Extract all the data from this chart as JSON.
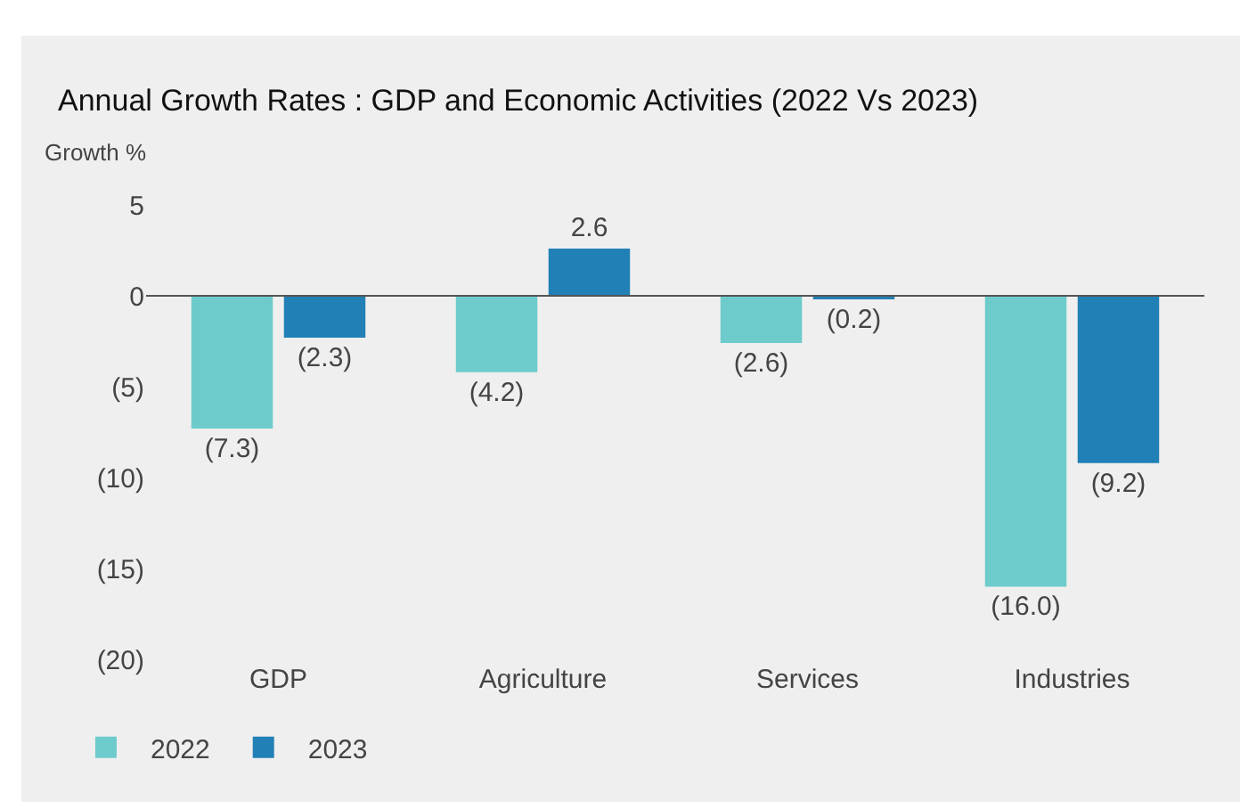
{
  "chart_data": {
    "type": "bar",
    "title": "Annual Growth Rates : GDP and Economic Activities (2022 Vs 2023)",
    "ylabel": "Growth %",
    "categories": [
      "GDP",
      "Agriculture",
      "Services",
      "Industries"
    ],
    "series": [
      {
        "name": "2022",
        "color": "#6ecbcc",
        "values": [
          -7.3,
          -4.2,
          -2.6,
          -16.0
        ],
        "value_labels": [
          "(7.3)",
          "(4.2)",
          "(2.6)",
          "(16.0)"
        ]
      },
      {
        "name": "2023",
        "color": "#2180b6",
        "values": [
          -2.3,
          2.6,
          -0.2,
          -9.2
        ],
        "value_labels": [
          "(2.3)",
          "2.6",
          "(0.2)",
          "(9.2)"
        ]
      }
    ],
    "ylim": [
      -20,
      5
    ],
    "yticks": [
      5,
      0,
      {
        "value": -5,
        "label": "(5)"
      },
      {
        "value": -10,
        "label": "(10)"
      },
      {
        "value": -15,
        "label": "(15)"
      },
      {
        "value": -20,
        "label": "(20)"
      }
    ],
    "ref_lines": [
      {
        "axis": "y",
        "value": 0,
        "color": "#555555"
      }
    ],
    "grid": false,
    "legend": "bottom left"
  }
}
